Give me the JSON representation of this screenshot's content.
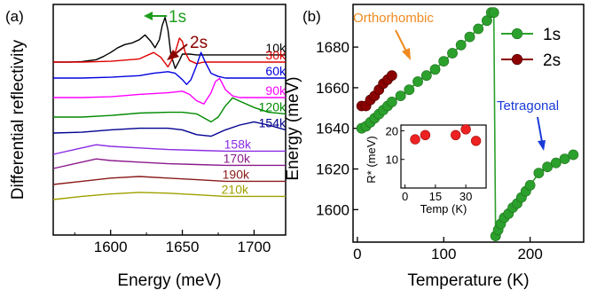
{
  "chart_data": [
    {
      "type": "line",
      "panel_label": "(a)",
      "xlabel": "Energy (meV)",
      "ylabel": "Differential reflectivity",
      "xlim": [
        1560,
        1722
      ],
      "x_ticks": [
        1600,
        1650,
        1700
      ],
      "y_ticks_shown": false,
      "series": [
        {
          "name": "10k",
          "color": "#000000",
          "x": [
            1560,
            1570,
            1580,
            1590,
            1595,
            1600,
            1605,
            1610,
            1615,
            1620,
            1624,
            1628,
            1631,
            1634,
            1636,
            1638,
            1640,
            1642,
            1645,
            1648,
            1650,
            1655,
            1660,
            1670,
            1680,
            1690,
            1700,
            1722
          ],
          "y": [
            0,
            0,
            0.3,
            1.5,
            3.5,
            6,
            9,
            11,
            12,
            14,
            17,
            13,
            9,
            14,
            23,
            28,
            20,
            5,
            -4,
            1,
            5,
            5,
            4.5,
            4.5,
            4.5,
            4.5,
            4.5,
            4.5
          ]
        },
        {
          "name": "30k",
          "color": "#e00000",
          "x": [
            1560,
            1580,
            1600,
            1620,
            1630,
            1635,
            1640,
            1643,
            1645,
            1648,
            1650,
            1652,
            1655,
            1660,
            1665,
            1670,
            1680,
            1700,
            1722
          ],
          "y": [
            0,
            0,
            0.5,
            2,
            6,
            3,
            -3,
            2,
            6,
            15,
            13,
            6,
            1,
            -1,
            0,
            0,
            0,
            0,
            0
          ]
        },
        {
          "name": "60k",
          "color": "#0000e0",
          "x": [
            1560,
            1580,
            1600,
            1620,
            1630,
            1640,
            1645,
            1650,
            1653,
            1656,
            1660,
            1663,
            1666,
            1670,
            1675,
            1680,
            1700,
            1722
          ],
          "y": [
            0,
            0,
            0.5,
            1.5,
            3,
            4,
            3,
            -1,
            -4,
            -1,
            8,
            16,
            10,
            3,
            1,
            0,
            0,
            0
          ]
        },
        {
          "name": "90k",
          "color": "#ff00ff",
          "x": [
            1560,
            1580,
            1600,
            1620,
            1640,
            1650,
            1655,
            1660,
            1665,
            1670,
            1673,
            1676,
            1680,
            1685,
            1690,
            1700,
            1722
          ],
          "y": [
            0,
            0,
            0.5,
            2,
            3,
            4,
            2,
            -2,
            -4,
            3,
            10,
            12,
            5,
            1,
            0,
            0,
            0
          ]
        },
        {
          "name": "120k",
          "color": "#008a00",
          "x": [
            1560,
            1580,
            1600,
            1620,
            1640,
            1650,
            1660,
            1670,
            1675,
            1680,
            1685,
            1690,
            1700,
            1710,
            1722
          ],
          "y": [
            0,
            0,
            1,
            2.5,
            3,
            3,
            2,
            -3,
            0,
            7,
            12,
            10,
            6,
            3,
            2
          ]
        },
        {
          "name": "154k",
          "color": "#000090",
          "x": [
            1560,
            1580,
            1600,
            1620,
            1640,
            1650,
            1660,
            1670,
            1680,
            1690,
            1700,
            1710,
            1722
          ],
          "y": [
            0,
            0.5,
            2,
            3,
            3,
            2,
            -1,
            -2,
            2,
            5,
            7,
            5,
            2
          ]
        },
        {
          "name": "158k",
          "color": "#8a2be2",
          "x": [
            1560,
            1575,
            1590,
            1600,
            1620,
            1640,
            1660,
            1680,
            1700,
            1722
          ],
          "y": [
            0,
            3,
            6,
            5,
            4,
            3,
            2.5,
            2,
            2,
            2
          ]
        },
        {
          "name": "170k",
          "color": "#8b1a8b",
          "x": [
            1560,
            1575,
            1590,
            1600,
            1620,
            1640,
            1660,
            1680,
            1700,
            1722
          ],
          "y": [
            0,
            3,
            6,
            5,
            4,
            3,
            2.5,
            2,
            2,
            2
          ]
        },
        {
          "name": "190k",
          "color": "#8b1a1a",
          "x": [
            1560,
            1580,
            1600,
            1620,
            1640,
            1660,
            1680,
            1700,
            1722
          ],
          "y": [
            0,
            2,
            4,
            5,
            4,
            3,
            2,
            2,
            2
          ]
        },
        {
          "name": "210k",
          "color": "#a0a000",
          "x": [
            1560,
            1580,
            1600,
            1620,
            1640,
            1660,
            1680,
            1700,
            1722
          ],
          "y": [
            0,
            2,
            3.5,
            4.5,
            4,
            3,
            2,
            2,
            2
          ]
        }
      ],
      "annotations": [
        "1s",
        "2s"
      ]
    },
    {
      "type": "scatter",
      "panel_label": "(b)",
      "xlabel": "Temperature (K)",
      "ylabel": "Energy (meV)",
      "xlim": [
        -5,
        262
      ],
      "ylim": [
        1584,
        1701
      ],
      "x_ticks": [
        0,
        100,
        200
      ],
      "y_ticks": [
        1600,
        1620,
        1640,
        1660,
        1680
      ],
      "series": [
        {
          "name": "1s",
          "color": "#2ca02c",
          "x": [
            5,
            10,
            15,
            20,
            25,
            30,
            35,
            40,
            50,
            60,
            70,
            80,
            90,
            100,
            110,
            120,
            130,
            140,
            150,
            155,
            158,
            160,
            163,
            166,
            170,
            175,
            180,
            185,
            190,
            195,
            200,
            210,
            220,
            230,
            240,
            250
          ],
          "y": [
            1640,
            1641,
            1643,
            1645,
            1647,
            1649,
            1651,
            1653,
            1656,
            1659,
            1663,
            1666,
            1669,
            1673,
            1677,
            1681,
            1685,
            1689,
            1693,
            1697,
            1697,
            1587,
            1590,
            1593,
            1596,
            1598,
            1601,
            1603,
            1606,
            1609,
            1612,
            1618,
            1621,
            1623,
            1625,
            1627
          ]
        },
        {
          "name": "2s",
          "color": "#8b0000",
          "x": [
            5,
            10,
            15,
            20,
            25,
            30,
            35,
            40
          ],
          "y": [
            1651,
            1651,
            1654,
            1656,
            1659,
            1662,
            1664,
            1666
          ]
        }
      ],
      "annotations": [
        "Orthorhombic",
        "Tetragonal"
      ],
      "inset": {
        "type": "scatter",
        "xlabel": "Temp (K)",
        "ylabel": "R* (meV)",
        "xlim": [
          -2,
          40
        ],
        "ylim": [
          0,
          22
        ],
        "x_ticks": [
          0,
          15,
          30
        ],
        "y_ticks": [
          10,
          20
        ],
        "series": [
          {
            "name": "",
            "color": "#ee2222",
            "x": [
              5,
              10,
              25,
              30,
              35
            ],
            "y": [
              17,
              18.5,
              18.5,
              20.5,
              16.5
            ]
          }
        ]
      }
    }
  ],
  "labels": {
    "panel_a": "(a)",
    "panel_b": "(b)",
    "a_xlabel": "Energy (meV)",
    "a_ylabel": "Differential reflectivity",
    "b_xlabel": "Temperature (K)",
    "b_ylabel": "Energy (meV)",
    "inset_xlabel": "Temp (K)",
    "inset_ylabel": "R* (meV)",
    "anno_1s": "1s",
    "anno_2s": "2s",
    "orthorhombic": "Orthorhombic",
    "tetragonal": "Tetragonal",
    "legend_1s": "1s",
    "legend_2s": "2s"
  }
}
